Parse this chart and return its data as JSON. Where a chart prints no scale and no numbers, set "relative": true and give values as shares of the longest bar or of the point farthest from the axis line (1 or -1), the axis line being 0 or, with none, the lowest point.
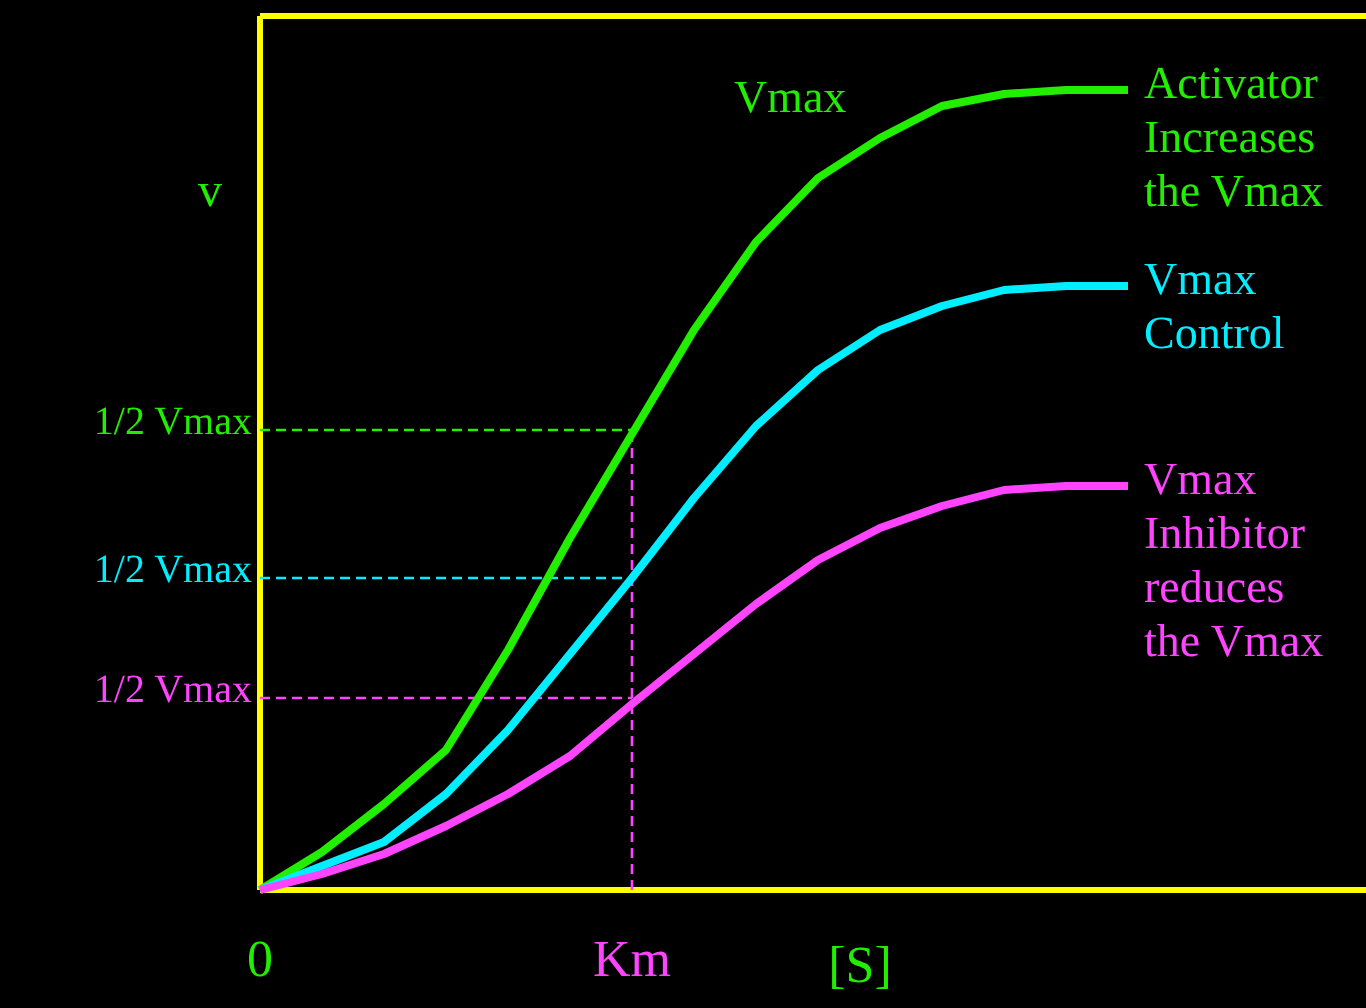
{
  "chart_data": {
    "type": "line",
    "relative": true,
    "xlabel": "[S]",
    "ylabel": "v",
    "categories": [
      "0",
      null,
      null,
      null,
      null,
      null,
      "Km",
      null,
      null,
      null,
      null,
      null,
      null,
      null,
      null
    ],
    "series": [
      {
        "name": "Activator\nIncreases\nthe Vmax",
        "color": "#22ee00",
        "values": [
          0,
          0.0475,
          0.1075,
          0.175,
          0.3,
          0.44,
          0.57,
          0.7,
          0.81,
          0.89,
          0.94,
          0.98,
          0.995,
          1.0,
          1.0
        ]
      },
      {
        "name": "Vmax\nControl",
        "color": "#00eeff",
        "values": [
          0,
          0.03,
          0.06,
          0.12,
          0.2,
          0.295,
          0.39,
          0.49,
          0.58,
          0.65,
          0.7,
          0.73,
          0.75,
          0.755,
          0.755
        ]
      },
      {
        "name": "Vmax\nInhibitor\nreduces\nthe Vmax",
        "color": "#ff44ff",
        "values": [
          0,
          0.02,
          0.045,
          0.08,
          0.12,
          0.1675,
          0.2325,
          0.295,
          0.3575,
          0.4125,
          0.4525,
          0.48,
          0.5,
          0.505,
          0.505
        ]
      }
    ],
    "ref_lines": [
      {
        "axis": "y",
        "value": 0.575,
        "label": "1/2 Vmax",
        "color": "#22ee00",
        "line_style": "dashed"
      },
      {
        "axis": "y",
        "value": 0.39,
        "label": "1/2 Vmax",
        "color": "#00eeff",
        "line_style": "dashed"
      },
      {
        "axis": "y",
        "value": 0.24,
        "label": "1/2 Vmax",
        "color": "#ff44ff",
        "line_style": "dashed"
      },
      {
        "axis": "x",
        "value": "Km",
        "color": "#ff44ff",
        "line_style": "dashed"
      }
    ],
    "annotations": [
      "Vmax"
    ],
    "legend": false,
    "marker": "none",
    "line_style": "solid"
  }
}
